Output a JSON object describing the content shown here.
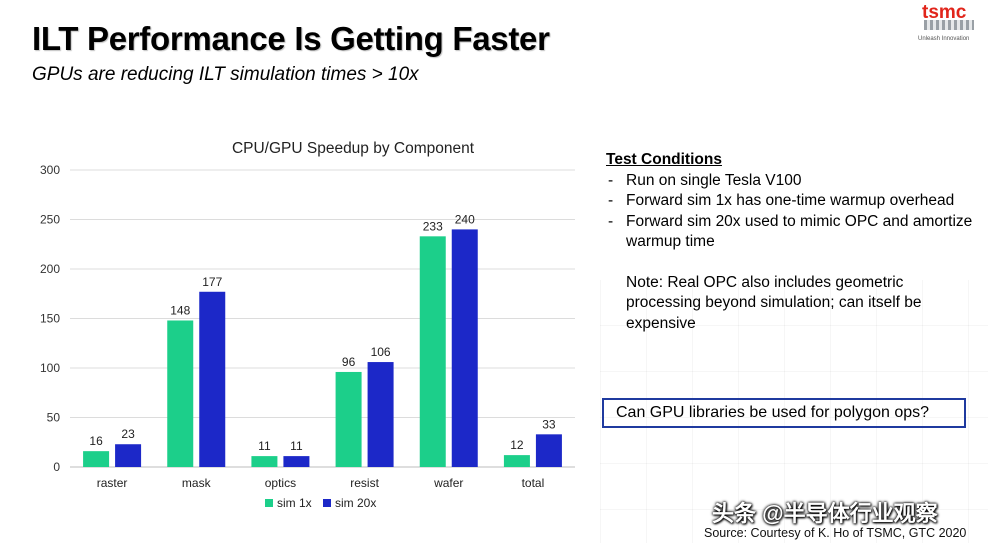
{
  "slide": {
    "title": "ILT Performance Is Getting Faster",
    "subtitle": "GPUs are reducing ILT simulation times > 10x"
  },
  "logo": {
    "text": "tsmc",
    "tagline": "Unleash Innovation"
  },
  "chart_data": {
    "type": "bar",
    "title": "CPU/GPU Speedup by Component",
    "categories": [
      "raster",
      "mask",
      "optics",
      "resist",
      "wafer",
      "total"
    ],
    "series": [
      {
        "name": "sim 1x",
        "values": [
          16,
          148,
          11,
          96,
          233,
          12
        ],
        "color": "#1ccf8a"
      },
      {
        "name": "sim 20x",
        "values": [
          23,
          177,
          11,
          106,
          240,
          33
        ],
        "color": "#1c28c8"
      }
    ],
    "yticks": [
      0,
      50,
      100,
      150,
      200,
      250,
      300
    ],
    "ylim": [
      0,
      300
    ],
    "grid": true,
    "legend": "bottom",
    "xlabel": "",
    "ylabel": ""
  },
  "test_conditions": {
    "heading": "Test Conditions",
    "items": [
      "Run on single Tesla V100",
      "Forward sim 1x has one-time warmup overhead",
      "Forward sim 20x used to mimic OPC and amortize warmup time"
    ],
    "note": "Note: Real OPC also includes geometric processing  beyond simulation; can itself be expensive"
  },
  "question": "Can GPU libraries be used for polygon ops?",
  "watermark": "头条 @半导体行业观察",
  "source": "Source:  Courtesy of K. Ho of TSMC, GTC 2020"
}
